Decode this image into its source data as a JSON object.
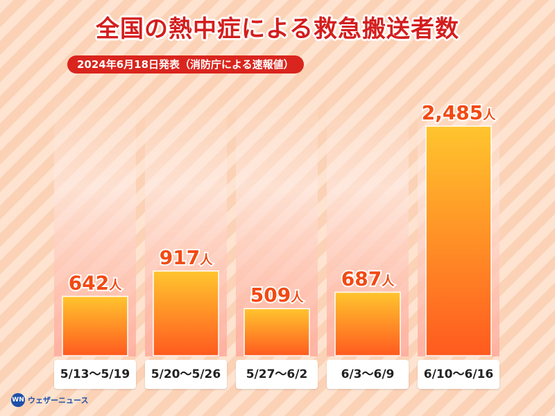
{
  "header": {
    "title": "全国の熱中症による救急搬送者数",
    "subtitle": "2024年6月18日発表（消防庁による速報値）"
  },
  "colors": {
    "title": "#d41e1e",
    "pill": "#d9251d",
    "bar_top": "#ffc52e",
    "bar_bottom": "#ff5a1f",
    "label": "#f24a13"
  },
  "chart_data": {
    "type": "bar",
    "title": "全国の熱中症による救急搬送者数",
    "subtitle": "2024年6月18日発表（消防庁による速報値）",
    "categories": [
      "5/13〜5/19",
      "5/20〜5/26",
      "5/27〜6/2",
      "6/3〜6/9",
      "6/10〜6/16"
    ],
    "values": [
      642,
      917,
      509,
      687,
      2485
    ],
    "value_labels": [
      "642",
      "917",
      "509",
      "687",
      "2,485"
    ],
    "unit": "人",
    "xlabel": "",
    "ylabel": "",
    "ylim": [
      0,
      2800
    ],
    "grid": false,
    "legend": "none"
  },
  "logo": {
    "mark": "WN",
    "text": "ウェザーニュース"
  }
}
